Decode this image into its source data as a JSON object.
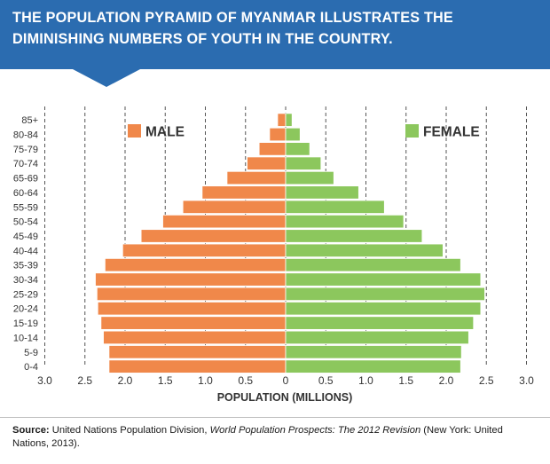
{
  "header": {
    "title": "THE POPULATION PYRAMID OF MYANMAR ILLUSTRATES THE DIMINISHING NUMBERS OF YOUTH IN THE COUNTRY.",
    "banner_color": "#2b6cb0"
  },
  "chart_data": {
    "type": "bar",
    "orientation": "horizontal-pyramid",
    "title": "",
    "xlabel": "POPULATION (MILLIONS)",
    "ylabel": "",
    "xlim": [
      -3.0,
      3.0
    ],
    "x_ticks": [
      -3.0,
      -2.5,
      -2.0,
      -1.5,
      -1.0,
      -0.5,
      0,
      0.5,
      1.0,
      1.5,
      2.0,
      2.5,
      3.0
    ],
    "x_tick_labels": [
      "3.0",
      "2.5",
      "2.0",
      "1.5",
      "1.0",
      "0.5",
      "0",
      "0.5",
      "1.0",
      "1.5",
      "2.0",
      "2.5",
      "3.0"
    ],
    "grid": "vertical-dashed",
    "legend_placement": "top",
    "categories": [
      "0-4",
      "5-9",
      "10-14",
      "15-19",
      "20-24",
      "25-29",
      "30-34",
      "35-39",
      "40-44",
      "45-49",
      "50-54",
      "55-59",
      "60-64",
      "65-69",
      "70-74",
      "75-79",
      "80-84",
      "85+"
    ],
    "series": [
      {
        "name": "MALE",
        "color": "#f0884a",
        "values": [
          2.2,
          2.2,
          2.27,
          2.3,
          2.34,
          2.35,
          2.37,
          2.25,
          2.03,
          1.8,
          1.53,
          1.28,
          1.04,
          0.73,
          0.48,
          0.33,
          0.2,
          0.1
        ]
      },
      {
        "name": "FEMALE",
        "color": "#8cc75d",
        "values": [
          2.18,
          2.19,
          2.28,
          2.34,
          2.43,
          2.48,
          2.43,
          2.18,
          1.96,
          1.7,
          1.47,
          1.23,
          0.91,
          0.6,
          0.44,
          0.3,
          0.18,
          0.08
        ]
      }
    ]
  },
  "source": {
    "label": "Source:",
    "pre": " United Nations Population Division, ",
    "title": "World Population Prospects: The 2012 Revision",
    "post": " (New York: United Nations, 2013)."
  }
}
